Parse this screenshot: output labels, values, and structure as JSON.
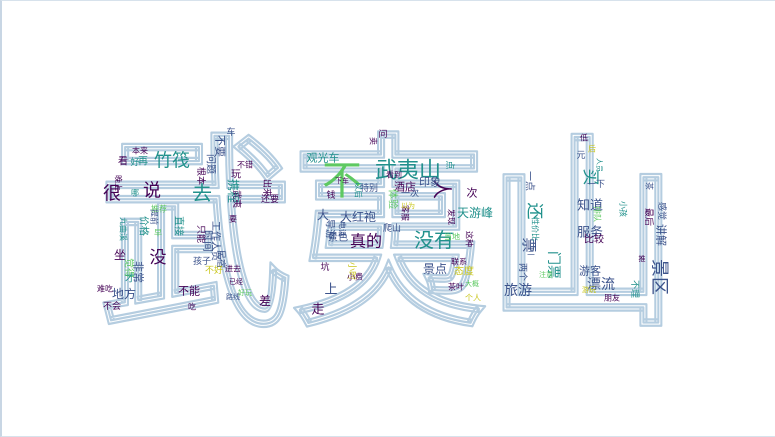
{
  "outline_text": "武夷山",
  "colors": {
    "dark_purple": "#440154",
    "indigo": "#3b528b",
    "teal": "#21918c",
    "green": "#5ec962",
    "yellow": "#c9c61b",
    "outline": "#b5cde0"
  },
  "words": [
    {
      "t": "不",
      "c": "green",
      "s": 40
    },
    {
      "t": "武夷山",
      "c": "teal",
      "s": 22
    },
    {
      "t": "人",
      "c": "dark_purple",
      "s": 20
    },
    {
      "t": "没有",
      "c": "teal",
      "s": 20
    },
    {
      "t": "去",
      "c": "teal",
      "s": 20
    },
    {
      "t": "竹筏",
      "c": "teal",
      "s": 18
    },
    {
      "t": "很",
      "c": "dark_purple",
      "s": 18
    },
    {
      "t": "说",
      "c": "dark_purple",
      "s": 18
    },
    {
      "t": "景区",
      "c": "indigo",
      "s": 18
    },
    {
      "t": "没",
      "c": "dark_purple",
      "s": 17
    },
    {
      "t": "买",
      "c": "teal",
      "s": 17
    },
    {
      "t": "还",
      "c": "teal",
      "s": 17
    },
    {
      "t": "真的",
      "c": "dark_purple",
      "s": 16
    },
    {
      "t": "票",
      "c": "indigo",
      "s": 15
    },
    {
      "t": "旅游",
      "c": "indigo",
      "s": 14
    },
    {
      "t": "门票",
      "c": "teal",
      "s": 14
    },
    {
      "t": "漂流",
      "c": "indigo",
      "s": 14
    },
    {
      "t": "服务",
      "c": "indigo",
      "s": 13
    },
    {
      "t": "知道",
      "c": "indigo",
      "s": 13
    },
    {
      "t": "走",
      "c": "dark_purple",
      "s": 13
    },
    {
      "t": "上",
      "c": "indigo",
      "s": 13
    },
    {
      "t": "大红袍",
      "c": "indigo",
      "s": 12
    },
    {
      "t": "景点",
      "c": "indigo",
      "s": 12
    },
    {
      "t": "大",
      "c": "indigo",
      "s": 12
    },
    {
      "t": "携程",
      "c": "teal",
      "s": 12
    },
    {
      "t": "差",
      "c": "dark_purple",
      "s": 12
    },
    {
      "t": "坐",
      "c": "dark_purple",
      "s": 12
    },
    {
      "t": "天游峰",
      "c": "teal",
      "s": 12
    },
    {
      "t": "地方",
      "c": "indigo",
      "s": 12
    },
    {
      "t": "不能",
      "c": "dark_purple",
      "s": 11
    },
    {
      "t": "游客",
      "c": "indigo",
      "s": 11
    },
    {
      "t": "讲解",
      "c": "indigo",
      "s": 11
    },
    {
      "t": "不要",
      "c": "indigo",
      "s": 11
    },
    {
      "t": "非常",
      "c": "indigo",
      "s": 11
    },
    {
      "t": "时间",
      "c": "indigo",
      "s": 11
    },
    {
      "t": "酒店",
      "c": "dark_purple",
      "s": 11
    },
    {
      "t": "印象",
      "c": "indigo",
      "s": 11
    },
    {
      "t": "观光车",
      "c": "teal",
      "s": 11
    },
    {
      "t": "问题",
      "c": "indigo",
      "s": 10
    },
    {
      "t": "直接",
      "c": "teal",
      "s": 10
    },
    {
      "t": "价格",
      "c": "teal",
      "s": 10
    },
    {
      "t": "觉得",
      "c": "green",
      "s": 10
    },
    {
      "t": "导游",
      "c": "indigo",
      "s": 10
    },
    {
      "t": "景色",
      "c": "indigo",
      "s": 10
    },
    {
      "t": "比较",
      "c": "dark_purple",
      "s": 10
    },
    {
      "t": "工作人员",
      "c": "indigo",
      "s": 10
    },
    {
      "t": "玩",
      "c": "dark_purple",
      "s": 10
    },
    {
      "t": "看",
      "c": "dark_purple",
      "s": 10
    },
    {
      "t": "再",
      "c": "teal",
      "s": 10
    },
    {
      "t": "低",
      "c": "dark_purple",
      "s": 8
    },
    {
      "t": "才",
      "c": "teal",
      "s": 10
    },
    {
      "t": "一点",
      "c": "indigo",
      "s": 10
    },
    {
      "t": "次",
      "c": "dark_purple",
      "s": 11
    },
    {
      "t": "态度",
      "c": "yellow",
      "s": 10
    },
    {
      "t": "体验",
      "c": "green",
      "s": 10
    },
    {
      "t": "特别",
      "c": "indigo",
      "s": 9
    },
    {
      "t": "爬山",
      "c": "indigo",
      "s": 9
    },
    {
      "t": "一次",
      "c": "indigo",
      "s": 9
    },
    {
      "t": "小时",
      "c": "yellow",
      "s": 9
    },
    {
      "t": "根本",
      "c": "dark_purple",
      "s": 9
    },
    {
      "t": "武夷",
      "c": "dark_purple",
      "s": 9
    },
    {
      "t": "出来",
      "c": "dark_purple",
      "s": 9
    },
    {
      "t": "还要",
      "c": "dark_purple",
      "s": 9
    },
    {
      "t": "只能",
      "c": "dark_purple",
      "s": 9
    },
    {
      "t": "民宿",
      "c": "indigo",
      "s": 9
    },
    {
      "t": "孩子",
      "c": "indigo",
      "s": 9
    },
    {
      "t": "不好",
      "c": "yellow",
      "s": 9
    },
    {
      "t": "不会",
      "c": "dark_purple",
      "s": 9
    },
    {
      "t": "两个",
      "c": "indigo",
      "s": 9
    },
    {
      "t": "一下",
      "c": "indigo",
      "s": 9
    },
    {
      "t": "最后",
      "c": "dark_purple",
      "s": 9
    },
    {
      "t": "感觉",
      "c": "indigo",
      "s": 9
    },
    {
      "t": "不理",
      "c": "teal",
      "s": 9
    },
    {
      "t": "朋友",
      "c": "dark_purple",
      "s": 8
    },
    {
      "t": "性价比",
      "c": "teal",
      "s": 8
    },
    {
      "t": "小孩",
      "c": "teal",
      "s": 8
    },
    {
      "t": "茶",
      "c": "indigo",
      "s": 8
    },
    {
      "t": "进去",
      "c": "dark_purple",
      "s": 8
    },
    {
      "t": "元",
      "c": "indigo",
      "s": 9
    },
    {
      "t": "钱",
      "c": "dark_purple",
      "s": 9
    },
    {
      "t": "点",
      "c": "teal",
      "s": 9
    },
    {
      "t": "客服",
      "c": "dark_purple",
      "s": 8
    },
    {
      "t": "发现",
      "c": "dark_purple",
      "s": 8
    },
    {
      "t": "吃",
      "c": "dark_purple",
      "s": 8
    },
    {
      "t": "好",
      "c": "teal",
      "s": 9
    },
    {
      "t": "车",
      "c": "indigo",
      "s": 9
    },
    {
      "t": "后",
      "c": "yellow",
      "s": 8
    },
    {
      "t": "问",
      "c": "dark_purple",
      "s": 9
    },
    {
      "t": "以后",
      "c": "teal",
      "s": 8
    },
    {
      "t": "卖",
      "c": "dark_purple",
      "s": 8
    },
    {
      "t": "不错",
      "c": "dark_purple",
      "s": 8
    },
    {
      "t": "电话",
      "c": "indigo",
      "s": 8
    },
    {
      "t": "看到",
      "c": "dark_purple",
      "s": 8
    },
    {
      "t": "这种",
      "c": "dark_purple",
      "s": 8
    },
    {
      "t": "小费",
      "c": "dark_purple",
      "s": 8
    },
    {
      "t": "个人",
      "c": "yellow",
      "s": 8
    },
    {
      "t": "三",
      "c": "indigo",
      "s": 8
    },
    {
      "t": "要",
      "c": "dark_purple",
      "s": 8
    },
    {
      "t": "本来",
      "c": "dark_purple",
      "s": 8
    },
    {
      "t": "晚上",
      "c": "dark_purple",
      "s": 8
    },
    {
      "t": "九曲溪",
      "c": "teal",
      "s": 8
    },
    {
      "t": "联系",
      "c": "dark_purple",
      "s": 8
    },
    {
      "t": "推荐",
      "c": "green",
      "s": 8
    },
    {
      "t": "排队",
      "c": "green",
      "s": 8
    },
    {
      "t": "早",
      "c": "green",
      "s": 8
    },
    {
      "t": "茶叶",
      "c": "dark_purple",
      "s": 8
    },
    {
      "t": "难吃",
      "c": "dark_purple",
      "s": 8
    },
    {
      "t": "当地",
      "c": "green",
      "s": 8
    },
    {
      "t": "坑",
      "c": "dark_purple",
      "s": 9
    },
    {
      "t": "提前",
      "c": "indigo",
      "s": 8
    },
    {
      "t": "哪",
      "c": "teal",
      "s": 8
    },
    {
      "t": "好玩",
      "c": "green",
      "s": 7
    },
    {
      "t": "以为",
      "c": "yellow",
      "s": 7
    },
    {
      "t": "大概",
      "c": "green",
      "s": 7
    },
    {
      "t": "游玩",
      "c": "yellow",
      "s": 7
    },
    {
      "t": "已经",
      "c": "dark_purple",
      "s": 7
    },
    {
      "t": "推",
      "c": "dark_purple",
      "s": 7
    },
    {
      "t": "人员",
      "c": "teal",
      "s": 7
    },
    {
      "t": "注意",
      "c": "green",
      "s": 7
    },
    {
      "t": "路线",
      "c": "indigo",
      "s": 7
    },
    {
      "t": "下车",
      "c": "dark_purple",
      "s": 7
    }
  ]
}
